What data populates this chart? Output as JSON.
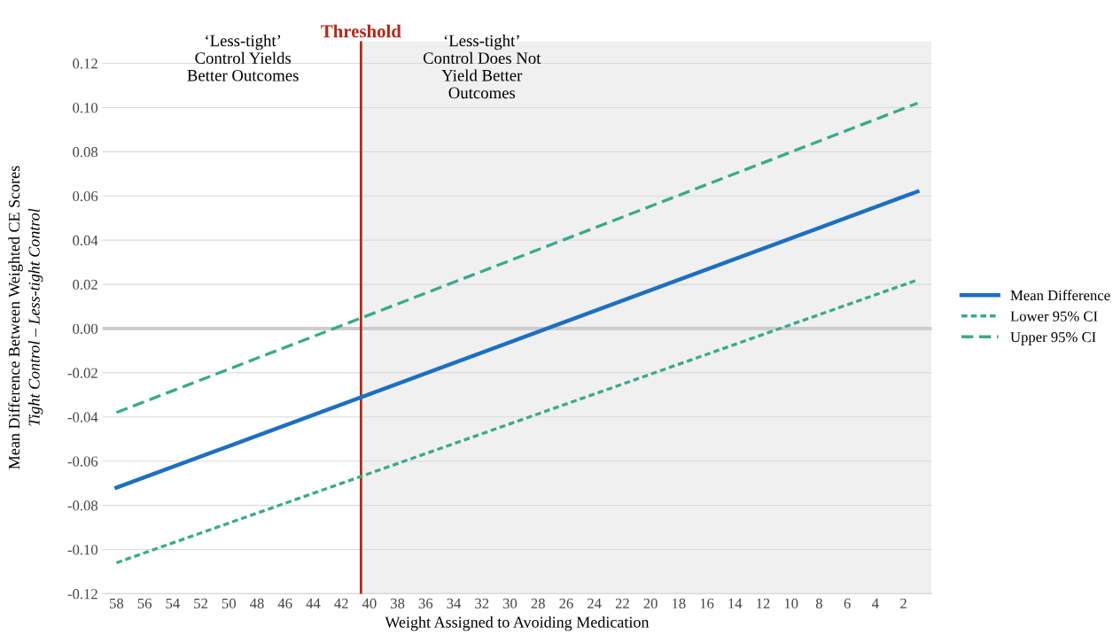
{
  "chart_data": {
    "type": "line",
    "xlabel": "Weight Assigned to Avoiding Medication",
    "ylabel": "Mean Difference Between Weighted CE Scores\nTight Control – Less-tight Control",
    "xlim": [
      59,
      0
    ],
    "xticks": [
      58,
      56,
      54,
      52,
      50,
      48,
      46,
      44,
      42,
      40,
      38,
      36,
      34,
      32,
      30,
      28,
      26,
      24,
      22,
      20,
      18,
      16,
      14,
      12,
      10,
      8,
      6,
      4,
      2
    ],
    "ylim": [
      -0.12,
      0.13
    ],
    "yticks": [
      {
        "value": -0.12,
        "label": "-0.12"
      },
      {
        "value": -0.1,
        "label": "-0.10"
      },
      {
        "value": -0.08,
        "label": "-0.08"
      },
      {
        "value": -0.06,
        "label": "-0.06"
      },
      {
        "value": -0.04,
        "label": "-0.04"
      },
      {
        "value": -0.02,
        "label": "-0.02"
      },
      {
        "value": 0,
        "label": "0.00"
      },
      {
        "value": 0.02,
        "label": "0.02"
      },
      {
        "value": 0.04,
        "label": "0.04"
      },
      {
        "value": 0.06,
        "label": "0.06"
      },
      {
        "value": 0.08,
        "label": "0.08"
      },
      {
        "value": 0.1,
        "label": "0.10"
      },
      {
        "value": 0.12,
        "label": "0.12"
      }
    ],
    "x": [
      58,
      1
    ],
    "series": [
      {
        "name": "Mean Difference",
        "color": "#1f6fbf",
        "values": [
          -0.072,
          0.062
        ],
        "line_style": "solid"
      },
      {
        "name": "Lower 95% CI",
        "color": "#3aaa8a",
        "values": [
          -0.106,
          0.022
        ],
        "line_style": "dotted"
      },
      {
        "name": "Upper 95% CI",
        "color": "#3aaa8a",
        "values": [
          -0.038,
          0.102
        ],
        "line_style": "dashed"
      }
    ],
    "ref_lines": [
      {
        "axis": "x",
        "value": 40.6,
        "label": "Threshold",
        "color": "#b22a1a"
      },
      {
        "axis": "y",
        "value": 0,
        "color": "#cccccc"
      }
    ],
    "bands": [
      {
        "axis": "x",
        "from": 40.6,
        "to": 0,
        "color": "#f0f0f0"
      }
    ],
    "annotations": [
      "‘Less-tight’\nControl Yields\nBetter Outcomes",
      "‘Less-tight’\nControl Does Not\nYield Better\nOutcomes"
    ],
    "grid": "y",
    "legend": "right",
    "marker": "none"
  }
}
